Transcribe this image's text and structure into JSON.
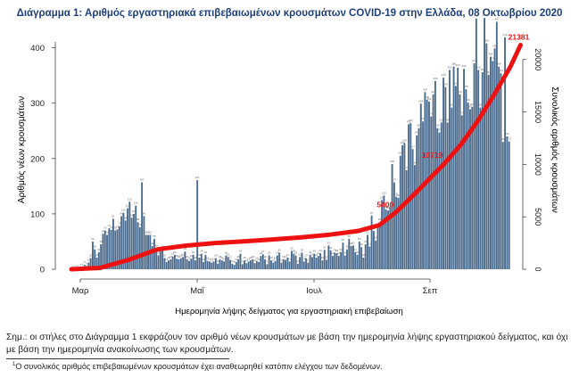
{
  "chart_data": {
    "type": "bar",
    "title": "Διάγραμμα 1: Αριθμός εργαστηριακά επιβεβαιωμένων κρουσμάτων COVID-19 στην Ελλάδα, 08 Οκτωβρίου 2020",
    "xlabel": "Ημερομηνία λήψης δείγματος για εργαστηριακή επιβεβαίωση",
    "ylabel": "Αριθμός νέων κρουσμάτων",
    "y2label": "Συνολικός αριθμός κρουσμάτων",
    "x_ticks": [
      "Μαρ",
      "Μαΐ",
      "Ιουλ",
      "Σεπ"
    ],
    "ylim": [
      0,
      430
    ],
    "y_ticks": [
      0,
      100,
      200,
      300,
      400
    ],
    "y2lim": [
      0,
      22700
    ],
    "y2_ticks": [
      0,
      5000,
      10000,
      15000,
      20000
    ],
    "grid": false,
    "legend": "none",
    "series": [
      {
        "kind": "bar",
        "color": "#4b6b8e",
        "values": [
          1,
          0,
          2,
          1,
          3,
          4,
          8,
          6,
          12,
          20,
          50,
          36,
          21,
          31,
          45,
          64,
          70,
          62,
          74,
          71,
          91,
          70,
          72,
          78,
          96,
          102,
          88,
          110,
          122,
          93,
          100,
          115,
          85,
          76,
          157,
          96,
          62,
          62,
          62,
          42,
          55,
          38,
          25,
          34,
          36,
          20,
          13,
          16,
          18,
          23,
          26,
          19,
          18,
          20,
          22,
          32,
          18,
          15,
          19,
          26,
          16,
          161,
          21,
          28,
          13,
          26,
          15,
          14,
          12,
          14,
          20,
          10,
          18,
          16,
          14,
          25,
          22,
          17,
          10,
          8,
          13,
          18,
          28,
          9,
          16,
          11,
          14,
          16,
          18,
          11,
          15,
          13,
          24,
          27,
          18,
          9,
          25,
          16,
          12,
          15,
          25,
          30,
          12,
          18,
          17,
          21,
          14,
          33,
          28,
          25,
          10,
          22,
          30,
          14,
          20,
          12,
          26,
          22,
          28,
          21,
          24,
          29,
          16,
          35,
          17,
          43,
          34,
          24,
          30,
          29,
          24,
          31,
          48,
          25,
          36,
          55,
          42,
          43,
          31,
          26,
          50,
          40,
          21,
          45,
          62,
          41,
          97,
          69,
          52,
          76,
          85,
          125,
          133,
          108,
          106,
          112,
          190,
          157,
          131,
          129,
          205,
          224,
          228,
          179,
          262,
          264,
          217,
          188,
          242,
          255,
          299,
          267,
          320,
          306,
          303,
          276,
          316,
          340,
          255,
          247,
          265,
          346,
          329,
          265,
          360,
          292,
          366,
          331,
          364,
          316,
          278,
          362,
          325,
          301,
          289,
          293,
          372,
          453,
          360,
          292,
          356,
          454,
          408,
          351,
          384,
          376,
          399,
          447,
          366,
          354,
          230,
          419,
          240,
          231
        ]
      },
      {
        "kind": "line",
        "name": "cumulative",
        "color": "#ee1111",
        "axis": "right",
        "points": [
          [
            0,
            0
          ],
          [
            14,
            130
          ],
          [
            28,
            900
          ],
          [
            42,
            1900
          ],
          [
            56,
            2250
          ],
          [
            70,
            2500
          ],
          [
            84,
            2650
          ],
          [
            98,
            2840
          ],
          [
            112,
            3040
          ],
          [
            126,
            3300
          ],
          [
            140,
            3660
          ],
          [
            150,
            4200
          ],
          [
            158,
            5400
          ],
          [
            166,
            6900
          ],
          [
            174,
            8500
          ],
          [
            182,
            10100
          ],
          [
            190,
            11900
          ],
          [
            198,
            14100
          ],
          [
            206,
            16600
          ],
          [
            214,
            19300
          ],
          [
            219,
            21381
          ]
        ]
      }
    ],
    "annotations": [
      "5400",
      "10719",
      "21381"
    ]
  },
  "note": "Σημ.: οι στήλες στο Διάγραμμα 1 εκφράζουν τον αριθμό νέων κρουσμάτων με βάση την ημερομηνία λήψης εργαστηριακού δείγματος, και όχι με βάση την ημερομηνία ανακοίνωσης των κρουσμάτων.",
  "footnote_mark": "1",
  "footnote": "Ο συνολικός αριθμός επιβεβαιωμένων κρουσμάτων έχει αναθεωρηθεί κατόπιν ελέγχου των δεδομένων."
}
